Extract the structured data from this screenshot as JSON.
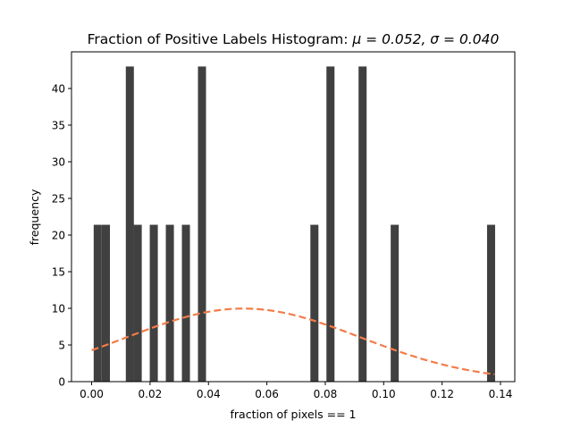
{
  "chart_data": {
    "type": "bar",
    "title": "Fraction of Positive Labels Histogram",
    "title_stats": "μ = 0.052,  σ = 0.040",
    "xlabel": "fraction of pixels == 1",
    "ylabel": "frequency",
    "xlim": [
      -0.0069,
      0.1449
    ],
    "ylim": [
      0,
      45
    ],
    "xticks": [
      "0.00",
      "0.02",
      "0.04",
      "0.06",
      "0.08",
      "0.10",
      "0.12",
      "0.14"
    ],
    "xtick_values": [
      0,
      0.02,
      0.04,
      0.06,
      0.08,
      0.1,
      0.12,
      0.14
    ],
    "yticks": [
      "0",
      "5",
      "10",
      "15",
      "20",
      "25",
      "30",
      "35",
      "40"
    ],
    "ytick_values": [
      0,
      5,
      10,
      15,
      20,
      25,
      30,
      35,
      40
    ],
    "bar_color": "#404040",
    "bin_width": 0.00276,
    "bins": [
      {
        "x0": 0.0007,
        "value": 21.4
      },
      {
        "x0": 0.0035,
        "value": 21.4
      },
      {
        "x0": 0.0117,
        "value": 43
      },
      {
        "x0": 0.0144,
        "value": 21.4
      },
      {
        "x0": 0.0199,
        "value": 21.4
      },
      {
        "x0": 0.0254,
        "value": 21.4
      },
      {
        "x0": 0.0309,
        "value": 21.4
      },
      {
        "x0": 0.0364,
        "value": 43
      },
      {
        "x0": 0.0749,
        "value": 21.4
      },
      {
        "x0": 0.0804,
        "value": 43
      },
      {
        "x0": 0.0914,
        "value": 43
      },
      {
        "x0": 0.1024,
        "value": 21.4
      },
      {
        "x0": 0.1354,
        "value": 21.4
      }
    ],
    "fit_curve": {
      "style": "dashed",
      "color": "#f47c48",
      "mu": 0.052,
      "sigma": 0.04,
      "peak": 9.97,
      "x_range": [
        0,
        0.138
      ]
    },
    "grid": false
  }
}
